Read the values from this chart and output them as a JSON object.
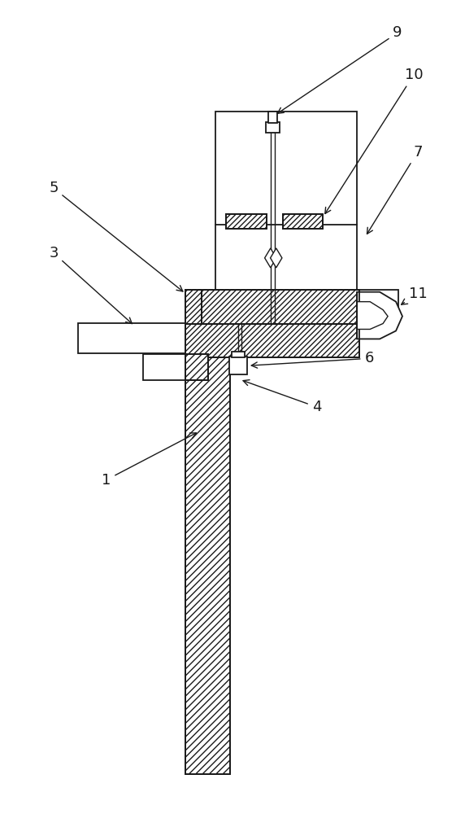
{
  "bg_color": "#ffffff",
  "lc": "#1a1a1a",
  "lw": 1.3,
  "fig_w": 5.72,
  "fig_h": 10.0,
  "dpi": 100
}
